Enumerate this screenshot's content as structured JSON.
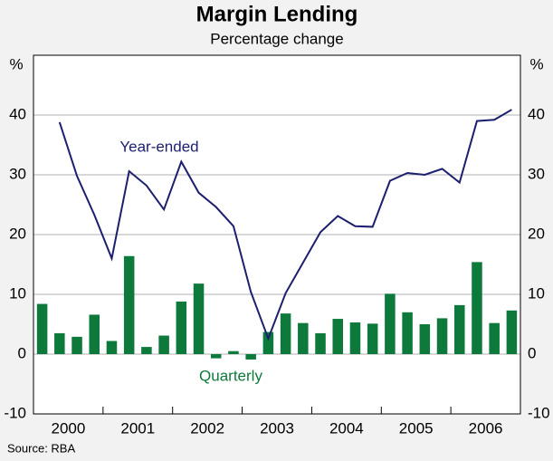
{
  "chart_data": {
    "type": "bar_line",
    "title": "Margin Lending",
    "subtitle": "Percentage change",
    "y_unit": "%",
    "source": "Source: RBA",
    "categories": [
      null,
      "2000",
      null,
      null,
      null,
      "2001",
      null,
      null,
      null,
      "2002",
      null,
      null,
      null,
      "2003",
      null,
      null,
      null,
      "2004",
      null,
      null,
      null,
      "2005",
      null,
      null,
      null,
      "2006",
      null,
      null
    ],
    "series": [
      {
        "name": "Quarterly",
        "type": "bar",
        "color": "#0d7a3c",
        "values": [
          8.4,
          3.5,
          2.9,
          6.6,
          2.2,
          16.4,
          1.2,
          3.1,
          8.8,
          11.8,
          -0.7,
          0.5,
          -0.9,
          3.7,
          6.8,
          5.2,
          3.5,
          5.9,
          5.3,
          5.1,
          10.1,
          7.0,
          5.0,
          6.0,
          8.2,
          15.4,
          5.2,
          7.3
        ]
      },
      {
        "name": "Year-ended",
        "type": "line",
        "color": "#1c1f6e",
        "values": [
          null,
          38.8,
          29.8,
          23.3,
          16.0,
          30.6,
          28.2,
          24.2,
          32.2,
          27.0,
          24.6,
          21.4,
          10.4,
          2.6,
          10.2,
          15.3,
          20.4,
          23.1,
          21.4,
          21.3,
          29.0,
          30.3,
          30.0,
          31.0,
          28.7,
          39.0,
          39.2,
          40.9
        ]
      }
    ],
    "ylim": [
      -10,
      50
    ],
    "yticks": [
      -10,
      0,
      10,
      20,
      30,
      40
    ],
    "grid": true
  }
}
